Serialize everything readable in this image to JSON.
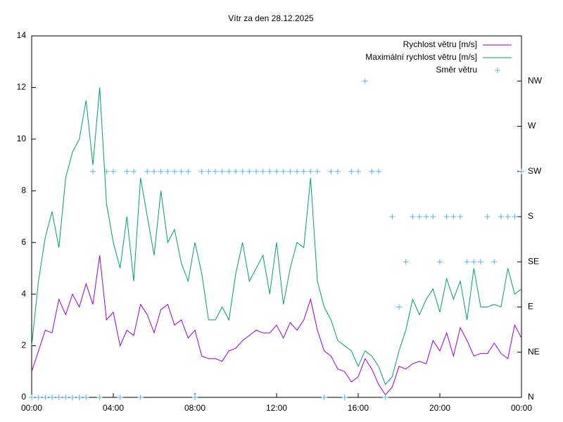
{
  "chart_data": {
    "type": "line",
    "title": "Vítr za den 28.12.2025",
    "x": [
      0,
      20,
      40,
      60,
      80,
      100,
      120,
      140,
      160,
      180,
      200,
      220,
      240,
      260,
      280,
      300,
      320,
      340,
      360,
      380,
      400,
      420,
      440,
      460,
      480,
      500,
      520,
      540,
      560,
      580,
      600,
      620,
      640,
      660,
      680,
      700,
      720,
      740,
      760,
      780,
      800,
      820,
      840,
      860,
      880,
      900,
      920,
      940,
      960,
      980,
      1000,
      1020,
      1040,
      1060,
      1080,
      1100,
      1120,
      1140,
      1160,
      1180,
      1200,
      1220,
      1240,
      1260,
      1280,
      1300,
      1320,
      1340,
      1360,
      1380,
      1400,
      1420,
      1440
    ],
    "xlim": [
      0,
      1440
    ],
    "xticks": [
      {
        "value": 0,
        "label": "00:00"
      },
      {
        "value": 240,
        "label": "04:00"
      },
      {
        "value": 480,
        "label": "08:00"
      },
      {
        "value": 720,
        "label": "12:00"
      },
      {
        "value": 960,
        "label": "16:00"
      },
      {
        "value": 1200,
        "label": "20:00"
      },
      {
        "value": 1440,
        "label": "00:00"
      }
    ],
    "ylim": [
      0,
      14
    ],
    "yticks": [
      0,
      2,
      4,
      6,
      8,
      10,
      12,
      14
    ],
    "y2lim": [
      0,
      8
    ],
    "y2ticks": [
      {
        "value": 0,
        "label": "N"
      },
      {
        "value": 1,
        "label": "NE"
      },
      {
        "value": 2,
        "label": "E"
      },
      {
        "value": 3,
        "label": "SE"
      },
      {
        "value": 4,
        "label": "S"
      },
      {
        "value": 5,
        "label": "SW"
      },
      {
        "value": 6,
        "label": "W"
      },
      {
        "value": 7,
        "label": "NW"
      }
    ],
    "legend": "top right",
    "series": [
      {
        "name": "Rychlost větru [m/s]",
        "color": "#9400d3",
        "style": "line",
        "values": [
          1.0,
          1.8,
          2.6,
          2.5,
          3.8,
          3.2,
          4.0,
          3.5,
          4.4,
          3.6,
          5.5,
          3.0,
          3.3,
          2.0,
          2.6,
          2.4,
          3.6,
          3.2,
          2.5,
          3.4,
          3.6,
          2.8,
          3.0,
          2.3,
          2.6,
          1.6,
          1.5,
          1.5,
          1.4,
          1.8,
          1.9,
          2.2,
          2.4,
          2.6,
          2.5,
          2.5,
          2.8,
          2.3,
          2.9,
          2.6,
          3.0,
          3.8,
          2.6,
          1.8,
          1.6,
          1.1,
          1.0,
          0.6,
          0.8,
          1.5,
          1.1,
          0.5,
          0.1,
          0.4,
          1.2,
          1.1,
          1.3,
          1.4,
          1.3,
          2.2,
          1.8,
          2.5,
          1.6,
          2.7,
          2.2,
          1.6,
          1.7,
          1.7,
          2.1,
          1.7,
          1.5,
          2.8,
          2.3
        ]
      },
      {
        "name": "Maximální rychlost větru [m/s]",
        "color": "#009e73",
        "style": "line",
        "values": [
          2.0,
          4.5,
          6.2,
          7.2,
          5.8,
          8.5,
          9.5,
          10.0,
          11.5,
          9.0,
          12.0,
          7.5,
          6.0,
          5.0,
          7.0,
          4.5,
          8.5,
          7.0,
          5.5,
          8.0,
          6.0,
          6.5,
          5.2,
          4.5,
          6.0,
          4.8,
          3.0,
          3.0,
          3.5,
          3.0,
          4.8,
          6.0,
          4.5,
          5.0,
          5.5,
          4.0,
          6.0,
          3.6,
          5.0,
          6.0,
          5.8,
          8.5,
          4.5,
          3.5,
          3.0,
          2.2,
          2.0,
          1.8,
          1.2,
          1.8,
          1.6,
          1.2,
          0.5,
          0.8,
          1.8,
          2.6,
          3.8,
          3.2,
          3.8,
          4.2,
          3.3,
          4.6,
          3.8,
          4.5,
          3.0,
          5.0,
          3.5,
          3.5,
          3.6,
          3.5,
          5.0,
          4.0,
          4.2
        ]
      },
      {
        "name": "Směr větru",
        "color": "#56b4e9",
        "style": "points",
        "axis": "y2",
        "values": [
          0,
          0,
          0,
          0,
          0,
          0,
          0,
          0,
          0,
          5,
          0,
          5,
          5,
          0,
          5,
          5,
          0,
          5,
          5,
          5,
          5,
          5,
          5,
          5,
          0,
          5,
          5,
          5,
          5,
          5,
          5,
          5,
          5,
          5,
          5,
          5,
          5,
          5,
          5,
          5,
          5,
          5,
          5,
          0,
          5,
          5,
          0,
          5,
          5,
          7,
          5,
          5,
          0,
          4,
          2,
          3,
          4,
          4,
          4,
          4,
          3,
          4,
          4,
          4,
          3,
          3,
          3,
          4,
          3,
          4,
          4,
          4,
          5
        ]
      }
    ]
  }
}
